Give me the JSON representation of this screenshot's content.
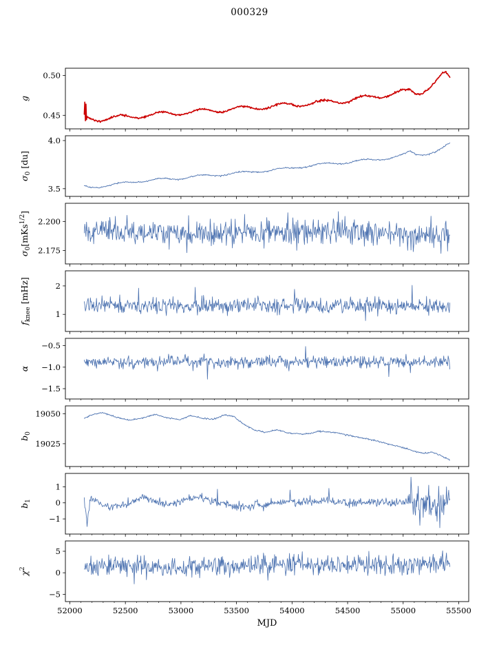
{
  "chart_data": {
    "type": "line",
    "title": "000329",
    "xlabel": "MJD",
    "xlim": [
      51960,
      55590
    ],
    "xticks": [
      52000,
      52500,
      53000,
      53500,
      54000,
      54500,
      55000,
      55500
    ],
    "xtick_labels": [
      "52000",
      "52500",
      "53000",
      "53500",
      "54000",
      "54500",
      "55000",
      "55500"
    ],
    "x_minor_step": 100,
    "x_data_range": [
      52130,
      55420
    ],
    "points_per_series": 660,
    "line_color": "#4c72b0",
    "grid": false,
    "legend": "none",
    "panels": [
      {
        "name": "g",
        "ylabel": "g",
        "ylabel_segments": [
          {
            "t": "g",
            "i": true
          }
        ],
        "ylim": [
          0.433,
          0.509
        ],
        "yticks": [
          0.45,
          0.5
        ],
        "ytick_labels": [
          "0.45",
          "0.50"
        ],
        "color": "#cc0000",
        "line_width": 1.6,
        "seed": 11,
        "noise": 0.0006,
        "sine": {
          "amp": 0.0028,
          "period": 365,
          "phase": 52359
        },
        "keypoints": [
          [
            52130,
            0.45
          ],
          [
            52160,
            0.4468
          ],
          [
            52250,
            0.4452
          ],
          [
            52400,
            0.4468
          ],
          [
            52700,
            0.4502
          ],
          [
            53000,
            0.4532
          ],
          [
            53300,
            0.4562
          ],
          [
            53600,
            0.459
          ],
          [
            53900,
            0.4622
          ],
          [
            54200,
            0.4652
          ],
          [
            54500,
            0.4688
          ],
          [
            54800,
            0.4745
          ],
          [
            54980,
            0.479
          ],
          [
            55060,
            0.4805
          ],
          [
            55110,
            0.4775
          ],
          [
            55170,
            0.48
          ],
          [
            55240,
            0.486
          ],
          [
            55300,
            0.493
          ],
          [
            55355,
            0.501
          ],
          [
            55385,
            0.5015
          ],
          [
            55420,
            0.495
          ]
        ],
        "spikes": [
          [
            52136,
            0.4665
          ],
          [
            52141,
            0.4432
          ],
          [
            52146,
            0.464
          ],
          [
            52151,
            0.4445
          ]
        ]
      },
      {
        "name": "sigma0-du",
        "ylabel": "σ0 [du]",
        "ylabel_segments": [
          {
            "t": "σ",
            "i": true
          },
          {
            "t": "0",
            "sub": true
          },
          {
            "t": " [du]"
          }
        ],
        "ylim": [
          3.42,
          4.05
        ],
        "yticks": [
          3.5,
          4.0
        ],
        "ytick_labels": [
          "3.5",
          "4.0"
        ],
        "line_width": 0.9,
        "seed": 22,
        "noise": 0.0035,
        "sine": {
          "amp": 0.012,
          "period": 365,
          "phase": 52359
        },
        "keypoints": [
          [
            52130,
            3.523
          ],
          [
            52180,
            3.516
          ],
          [
            52300,
            3.528
          ],
          [
            52450,
            3.552
          ],
          [
            52600,
            3.576
          ],
          [
            52750,
            3.59
          ],
          [
            52900,
            3.6
          ],
          [
            53100,
            3.622
          ],
          [
            53300,
            3.642
          ],
          [
            53500,
            3.66
          ],
          [
            53700,
            3.684
          ],
          [
            53900,
            3.7
          ],
          [
            54100,
            3.73
          ],
          [
            54300,
            3.756
          ],
          [
            54500,
            3.776
          ],
          [
            54700,
            3.798
          ],
          [
            54900,
            3.822
          ],
          [
            55000,
            3.848
          ],
          [
            55060,
            3.886
          ],
          [
            55120,
            3.86
          ],
          [
            55200,
            3.862
          ],
          [
            55290,
            3.878
          ],
          [
            55360,
            3.92
          ],
          [
            55420,
            3.966
          ]
        ],
        "spikes": []
      },
      {
        "name": "sigma0-mks",
        "ylabel": "σ0 [mKs^1/2]",
        "ylabel_segments": [
          {
            "t": "σ",
            "i": true
          },
          {
            "t": "0",
            "sub": true
          },
          {
            "t": "[mKs"
          },
          {
            "t": "1/2",
            "sup": true
          },
          {
            "t": "]"
          }
        ],
        "ylim": [
          2.1635,
          2.2156
        ],
        "yticks": [
          2.175,
          2.2
        ],
        "ytick_labels": [
          "2.175",
          "2.200"
        ],
        "line_width": 0.85,
        "seed": 33,
        "noise": 0.0052,
        "keypoints": [
          [
            52130,
            2.1905
          ],
          [
            53200,
            2.1895
          ],
          [
            54200,
            2.191
          ],
          [
            55420,
            2.189
          ]
        ],
        "spikes": [
          [
            52360,
            2.2035
          ],
          [
            53960,
            2.2075
          ],
          [
            54560,
            2.2015
          ],
          [
            55340,
            2.1725
          ],
          [
            55400,
            2.1745
          ]
        ]
      },
      {
        "name": "f-knee",
        "ylabel": "f_knee [mHz]",
        "ylabel_segments": [
          {
            "t": "f",
            "i": true
          },
          {
            "t": "knee",
            "sub": true
          },
          {
            "t": " [mHz]"
          }
        ],
        "ylim": [
          0.4,
          2.53
        ],
        "yticks": [
          1,
          2
        ],
        "ytick_labels": [
          "1",
          "2"
        ],
        "line_width": 0.85,
        "seed": 44,
        "noise": 0.135,
        "keypoints": [
          [
            52130,
            1.31
          ],
          [
            53000,
            1.29
          ],
          [
            54000,
            1.31
          ],
          [
            55420,
            1.28
          ]
        ],
        "spikes": [
          [
            52620,
            1.92
          ],
          [
            53130,
            1.95
          ],
          [
            54020,
            1.88
          ],
          [
            54660,
            0.78
          ],
          [
            55080,
            2.02
          ]
        ]
      },
      {
        "name": "alpha",
        "ylabel": "α",
        "ylabel_segments": [
          {
            "t": "α",
            "i": true
          }
        ],
        "ylim": [
          -1.74,
          -0.33
        ],
        "yticks": [
          -0.5,
          -1.0,
          -1.5
        ],
        "ytick_labels": [
          "−0.5",
          "−1.0",
          "−1.5"
        ],
        "line_width": 0.85,
        "seed": 55,
        "noise": 0.068,
        "keypoints": [
          [
            52130,
            -0.885
          ],
          [
            53500,
            -0.875
          ],
          [
            54500,
            -0.885
          ],
          [
            55420,
            -0.88
          ]
        ],
        "spikes": [
          [
            53240,
            -1.28
          ],
          [
            54120,
            -0.52
          ],
          [
            54870,
            -1.22
          ]
        ]
      },
      {
        "name": "b0",
        "ylabel": "b0",
        "ylabel_segments": [
          {
            "t": "b",
            "i": true
          },
          {
            "t": "0",
            "sub": true
          }
        ],
        "ylim": [
          19006,
          19056.5
        ],
        "yticks": [
          19025,
          19050
        ],
        "ytick_labels": [
          "19025",
          "19050"
        ],
        "line_width": 0.9,
        "seed": 66,
        "noise": 0.3,
        "keypoints": [
          [
            52130,
            19046.0
          ],
          [
            52180,
            19048.5
          ],
          [
            52290,
            19051.0
          ],
          [
            52420,
            19047.0
          ],
          [
            52530,
            19044.5
          ],
          [
            52660,
            19046.5
          ],
          [
            52770,
            19049.5
          ],
          [
            52880,
            19046.5
          ],
          [
            52990,
            19045.0
          ],
          [
            53090,
            19048.5
          ],
          [
            53200,
            19046.0
          ],
          [
            53300,
            19045.5
          ],
          [
            53390,
            19049.0
          ],
          [
            53480,
            19047.5
          ],
          [
            53560,
            19041.5
          ],
          [
            53660,
            19036.5
          ],
          [
            53760,
            19034.5
          ],
          [
            53860,
            19036.5
          ],
          [
            53960,
            19034.0
          ],
          [
            54110,
            19033.0
          ],
          [
            54260,
            19035.5
          ],
          [
            54410,
            19034.0
          ],
          [
            54560,
            19031.0
          ],
          [
            54710,
            19028.5
          ],
          [
            54860,
            19025.0
          ],
          [
            55010,
            19021.5
          ],
          [
            55110,
            19018.5
          ],
          [
            55190,
            19017.0
          ],
          [
            55260,
            19018.0
          ],
          [
            55330,
            19015.5
          ],
          [
            55420,
            19011.5
          ]
        ],
        "spikes": []
      },
      {
        "name": "b1",
        "ylabel": "b1",
        "ylabel_segments": [
          {
            "t": "b",
            "i": true
          },
          {
            "t": "1",
            "sub": true
          }
        ],
        "ylim": [
          -1.94,
          1.83
        ],
        "yticks": [
          -1,
          0,
          1
        ],
        "ytick_labels": [
          "−1",
          "0",
          "1"
        ],
        "line_width": 0.85,
        "seed": 77,
        "noise": 0.12,
        "noise_segments": [
          [
            55040,
            55420,
            0.45
          ]
        ],
        "keypoints": [
          [
            52130,
            0.2
          ],
          [
            52155,
            -1.25
          ],
          [
            52190,
            0.35
          ],
          [
            52260,
            0.1
          ],
          [
            52360,
            -0.25
          ],
          [
            52460,
            -0.15
          ],
          [
            52560,
            0.1
          ],
          [
            52660,
            0.3
          ],
          [
            52760,
            0.15
          ],
          [
            52860,
            -0.1
          ],
          [
            52960,
            0.0
          ],
          [
            53060,
            0.2
          ],
          [
            53160,
            0.4
          ],
          [
            53260,
            0.2
          ],
          [
            53360,
            -0.1
          ],
          [
            53460,
            -0.1
          ],
          [
            53560,
            -0.35
          ],
          [
            53660,
            -0.05
          ],
          [
            53760,
            -0.2
          ],
          [
            53860,
            0.05
          ],
          [
            53960,
            0.1
          ],
          [
            54110,
            0.0
          ],
          [
            54260,
            0.15
          ],
          [
            54410,
            0.05
          ],
          [
            54560,
            0.0
          ],
          [
            54710,
            0.05
          ],
          [
            54860,
            0.0
          ],
          [
            55010,
            0.05
          ],
          [
            55110,
            0.1
          ],
          [
            55210,
            0.0
          ],
          [
            55310,
            -0.05
          ],
          [
            55420,
            0.0
          ]
        ],
        "spikes": [
          [
            53330,
            0.85
          ],
          [
            53980,
            0.8
          ],
          [
            54330,
            0.9
          ],
          [
            55070,
            1.6
          ],
          [
            55150,
            -1.4
          ],
          [
            55230,
            1.1
          ],
          [
            55330,
            -1.55
          ],
          [
            55390,
            1.0
          ]
        ]
      },
      {
        "name": "chi2",
        "ylabel": "χ2",
        "ylabel_segments": [
          {
            "t": "χ",
            "i": true
          },
          {
            "t": "2",
            "sup": true
          }
        ],
        "ylim": [
          -6.7,
          7.4
        ],
        "yticks": [
          -5,
          0,
          5
        ],
        "ytick_labels": [
          "−5",
          "0",
          "5"
        ],
        "line_width": 0.85,
        "seed": 88,
        "noise": 1.15,
        "keypoints": [
          [
            52130,
            1.7
          ],
          [
            53000,
            1.5
          ],
          [
            54000,
            1.9
          ],
          [
            55000,
            1.8
          ],
          [
            55420,
            2.3
          ]
        ],
        "spikes": [
          [
            52580,
            -2.6
          ],
          [
            54090,
            4.9
          ],
          [
            54690,
            5.0
          ],
          [
            55390,
            4.6
          ]
        ]
      }
    ]
  }
}
